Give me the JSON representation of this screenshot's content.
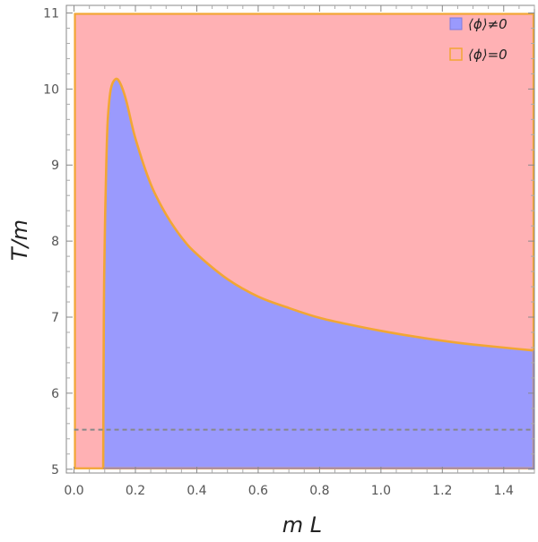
{
  "chart_data": {
    "type": "area",
    "xlabel": "m L",
    "ylabel": "T/m",
    "xlim": [
      -0.025,
      1.5
    ],
    "ylim": [
      4.95,
      11.1
    ],
    "xticks": [
      "0.0",
      "0.2",
      "0.4",
      "0.6",
      "0.8",
      "1.0",
      "1.2",
      "1.4"
    ],
    "xtick_values": [
      0,
      0.2,
      0.4,
      0.6,
      0.8,
      1.0,
      1.2,
      1.4
    ],
    "yticks": [
      "5",
      "6",
      "7",
      "8",
      "9",
      "10",
      "11"
    ],
    "ytick_values": [
      5,
      6,
      7,
      8,
      9,
      10,
      11
    ],
    "region_bounds": {
      "x": [
        0.0,
        1.5
      ],
      "y": [
        5,
        11
      ]
    },
    "boundary_points": [
      [
        0.095,
        5.0
      ],
      [
        0.097,
        7.0
      ],
      [
        0.1,
        8.0
      ],
      [
        0.105,
        9.0
      ],
      [
        0.11,
        9.6
      ],
      [
        0.12,
        10.0
      ],
      [
        0.135,
        10.13
      ],
      [
        0.15,
        10.08
      ],
      [
        0.17,
        9.85
      ],
      [
        0.2,
        9.35
      ],
      [
        0.25,
        8.75
      ],
      [
        0.3,
        8.35
      ],
      [
        0.35,
        8.05
      ],
      [
        0.4,
        7.83
      ],
      [
        0.5,
        7.5
      ],
      [
        0.6,
        7.27
      ],
      [
        0.7,
        7.12
      ],
      [
        0.8,
        6.99
      ],
      [
        0.9,
        6.9
      ],
      [
        1.0,
        6.82
      ],
      [
        1.1,
        6.75
      ],
      [
        1.2,
        6.69
      ],
      [
        1.3,
        6.64
      ],
      [
        1.4,
        6.6
      ],
      [
        1.5,
        6.56
      ]
    ],
    "dashed_line_y": 5.52,
    "series": [
      {
        "name": "⟨ϕ⟩≠0",
        "color": "#9a9afd"
      },
      {
        "name": "⟨ϕ⟩=0",
        "color": "#ffb1b4"
      }
    ],
    "boundary_color": "#f2a634",
    "dashed_color": "#888888",
    "legend_position": "top-right",
    "grid": false
  }
}
